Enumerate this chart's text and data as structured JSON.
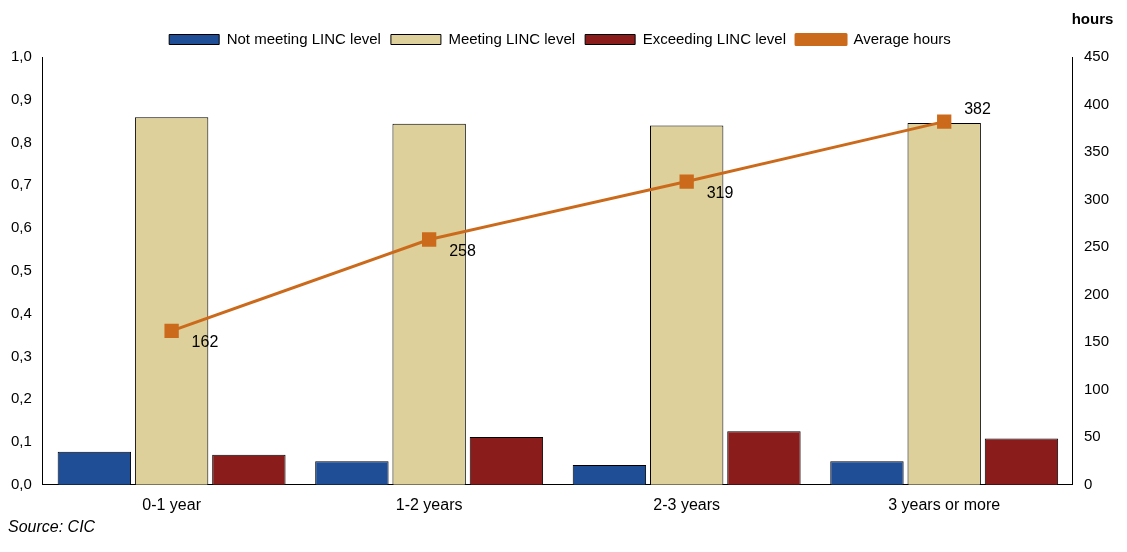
{
  "chart_data": {
    "type": "bar",
    "categories": [
      "0-1 year",
      "1-2 years",
      "2-3 years",
      "3 years or more"
    ],
    "series": [
      {
        "name": "Not meeting LINC level",
        "color": "#1f4e96",
        "values": [
          0.077,
          0.055,
          0.046,
          0.055
        ]
      },
      {
        "name": "Meeting LINC level",
        "color": "#ddd09a",
        "values": [
          0.859,
          0.844,
          0.84,
          0.846
        ]
      },
      {
        "name": "Exceeding LINC level",
        "color": "#8b1c1c",
        "values": [
          0.07,
          0.112,
          0.125,
          0.108
        ]
      },
      {
        "name": "Average hours",
        "type": "line",
        "axis": "y2",
        "color": "#cc6a1c",
        "marker": "square",
        "values": [
          162,
          258,
          319,
          382
        ],
        "value_labels": [
          "162",
          "258",
          "319",
          "382"
        ]
      }
    ],
    "ylim": [
      0,
      1
    ],
    "yticks": [
      {
        "value": 0,
        "label": "0,0"
      },
      {
        "value": 0.1,
        "label": "0,1"
      },
      {
        "value": 0.2,
        "label": "0,2"
      },
      {
        "value": 0.3,
        "label": "0,3"
      },
      {
        "value": 0.4,
        "label": "0,4"
      },
      {
        "value": 0.5,
        "label": "0,5"
      },
      {
        "value": 0.6,
        "label": "0,6"
      },
      {
        "value": 0.7,
        "label": "0,7"
      },
      {
        "value": 0.8,
        "label": "0,8"
      },
      {
        "value": 0.9,
        "label": "0,9"
      },
      {
        "value": 1,
        "label": "1,0"
      }
    ],
    "y2label": "hours",
    "y2lim": [
      0,
      450
    ],
    "y2ticks": [
      0,
      50,
      100,
      150,
      200,
      250,
      300,
      350,
      400,
      450
    ],
    "grid": false,
    "legend": "top",
    "annotations": [
      "Source: CIC"
    ]
  }
}
